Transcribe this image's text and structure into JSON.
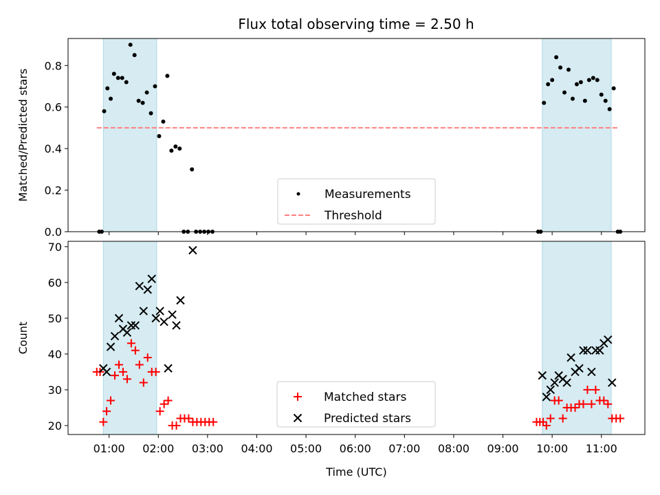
{
  "title": "Flux total observing time = 2.50 h",
  "colors": {
    "shade": "#add8e6",
    "threshold": "#ff7f7f",
    "measurements": "#000000",
    "matched": "#ff0000",
    "predicted": "#000000"
  },
  "chart_data": [
    {
      "type": "scatter",
      "ylabel": "Matched/Predicted stars",
      "ylim": [
        0,
        0.93
      ],
      "yticks": [
        0.0,
        0.2,
        0.4,
        0.6,
        0.8
      ],
      "ytick_labels": [
        "0.0",
        "0.2",
        "0.4",
        "0.6",
        "0.8"
      ],
      "shaded_intervals": [
        [
          "00:53",
          "01:58"
        ],
        [
          "09:48",
          "11:12"
        ]
      ],
      "threshold": 0.5,
      "threshold_range": [
        "00:45",
        "11:20"
      ],
      "legend": {
        "placement": "lower center",
        "entries": [
          "Measurements",
          "Threshold"
        ]
      },
      "series": [
        {
          "name": "Measurements",
          "marker": "dot",
          "points": [
            [
              "00:48",
              0.0
            ],
            [
              "00:51",
              0.0
            ],
            [
              "00:54",
              0.58
            ],
            [
              "00:58",
              0.69
            ],
            [
              "01:02",
              0.64
            ],
            [
              "01:06",
              0.76
            ],
            [
              "01:11",
              0.74
            ],
            [
              "01:16",
              0.74
            ],
            [
              "01:21",
              0.72
            ],
            [
              "01:26",
              0.9
            ],
            [
              "01:31",
              0.85
            ],
            [
              "01:36",
              0.63
            ],
            [
              "01:41",
              0.62
            ],
            [
              "01:46",
              0.67
            ],
            [
              "01:51",
              0.57
            ],
            [
              "01:56",
              0.7
            ],
            [
              "02:01",
              0.46
            ],
            [
              "02:06",
              0.53
            ],
            [
              "02:11",
              0.75
            ],
            [
              "02:16",
              0.39
            ],
            [
              "02:21",
              0.41
            ],
            [
              "02:26",
              0.4
            ],
            [
              "02:31",
              0.0
            ],
            [
              "02:36",
              0.0
            ],
            [
              "02:41",
              0.3
            ],
            [
              "02:46",
              0.0
            ],
            [
              "02:51",
              0.0
            ],
            [
              "02:56",
              0.0
            ],
            [
              "03:01",
              0.0
            ],
            [
              "03:06",
              0.0
            ],
            [
              "09:43",
              0.0
            ],
            [
              "09:46",
              0.0
            ],
            [
              "09:50",
              0.62
            ],
            [
              "09:55",
              0.71
            ],
            [
              "10:00",
              0.73
            ],
            [
              "10:05",
              0.84
            ],
            [
              "10:10",
              0.79
            ],
            [
              "10:15",
              0.67
            ],
            [
              "10:20",
              0.78
            ],
            [
              "10:25",
              0.64
            ],
            [
              "10:30",
              0.71
            ],
            [
              "10:35",
              0.72
            ],
            [
              "10:40",
              0.63
            ],
            [
              "10:45",
              0.73
            ],
            [
              "10:50",
              0.74
            ],
            [
              "10:55",
              0.73
            ],
            [
              "11:00",
              0.66
            ],
            [
              "11:05",
              0.63
            ],
            [
              "11:10",
              0.59
            ],
            [
              "11:15",
              0.69
            ],
            [
              "11:20",
              0.0
            ],
            [
              "11:23",
              0.0
            ]
          ]
        }
      ]
    },
    {
      "type": "scatter",
      "xlabel": "Time (UTC)",
      "ylabel": "Count",
      "ylim": [
        17.5,
        71.5
      ],
      "yticks": [
        20,
        30,
        40,
        50,
        60,
        70
      ],
      "ytick_labels": [
        "20",
        "30",
        "40",
        "50",
        "60",
        "70"
      ],
      "xlim": [
        "00:10",
        "11:53"
      ],
      "xticks": [
        "01:00",
        "02:00",
        "03:00",
        "04:00",
        "05:00",
        "06:00",
        "07:00",
        "08:00",
        "09:00",
        "10:00",
        "11:00"
      ],
      "xtick_labels": [
        "01:00",
        "02:00",
        "03:00",
        "04:00",
        "05:00",
        "06:00",
        "07:00",
        "08:00",
        "09:00",
        "10:00",
        "11:00"
      ],
      "shaded_intervals": [
        [
          "00:53",
          "01:58"
        ],
        [
          "09:48",
          "11:12"
        ]
      ],
      "legend": {
        "placement": "lower center",
        "entries": [
          "Matched stars",
          "Predicted stars"
        ]
      },
      "series": [
        {
          "name": "Matched stars",
          "marker": "plus",
          "points": [
            [
              "00:45",
              35
            ],
            [
              "00:49",
              35
            ],
            [
              "00:53",
              21
            ],
            [
              "00:57",
              24
            ],
            [
              "01:02",
              27
            ],
            [
              "01:07",
              34
            ],
            [
              "01:12",
              37
            ],
            [
              "01:17",
              35
            ],
            [
              "01:22",
              33
            ],
            [
              "01:27",
              43
            ],
            [
              "01:32",
              41
            ],
            [
              "01:37",
              37
            ],
            [
              "01:42",
              32
            ],
            [
              "01:47",
              39
            ],
            [
              "01:52",
              35
            ],
            [
              "01:57",
              35
            ],
            [
              "02:02",
              24
            ],
            [
              "02:07",
              26
            ],
            [
              "02:12",
              27
            ],
            [
              "02:17",
              20
            ],
            [
              "02:22",
              20
            ],
            [
              "02:27",
              22
            ],
            [
              "02:32",
              22
            ],
            [
              "02:37",
              22
            ],
            [
              "02:42",
              21
            ],
            [
              "02:47",
              21
            ],
            [
              "02:52",
              21
            ],
            [
              "02:57",
              21
            ],
            [
              "03:02",
              21
            ],
            [
              "03:07",
              21
            ],
            [
              "09:41",
              21
            ],
            [
              "09:45",
              21
            ],
            [
              "09:49",
              21
            ],
            [
              "09:53",
              20
            ],
            [
              "09:58",
              22
            ],
            [
              "10:03",
              27
            ],
            [
              "10:08",
              27
            ],
            [
              "10:13",
              22
            ],
            [
              "10:18",
              25
            ],
            [
              "10:23",
              25
            ],
            [
              "10:28",
              25
            ],
            [
              "10:33",
              26
            ],
            [
              "10:38",
              26
            ],
            [
              "10:43",
              30
            ],
            [
              "10:48",
              26
            ],
            [
              "10:53",
              30
            ],
            [
              "10:58",
              27
            ],
            [
              "11:03",
              27
            ],
            [
              "11:08",
              26
            ],
            [
              "11:13",
              22
            ],
            [
              "11:18",
              22
            ],
            [
              "11:23",
              22
            ]
          ]
        },
        {
          "name": "Predicted stars",
          "marker": "x",
          "points": [
            [
              "00:53",
              36
            ],
            [
              "00:57",
              35
            ],
            [
              "01:02",
              42
            ],
            [
              "01:07",
              45
            ],
            [
              "01:12",
              50
            ],
            [
              "01:17",
              47
            ],
            [
              "01:22",
              46
            ],
            [
              "01:27",
              48
            ],
            [
              "01:32",
              48
            ],
            [
              "01:37",
              59
            ],
            [
              "01:42",
              52
            ],
            [
              "01:47",
              58
            ],
            [
              "01:52",
              61
            ],
            [
              "01:57",
              50
            ],
            [
              "02:02",
              52
            ],
            [
              "02:07",
              49
            ],
            [
              "02:12",
              36
            ],
            [
              "02:17",
              51
            ],
            [
              "02:22",
              48
            ],
            [
              "02:27",
              55
            ],
            [
              "02:42",
              69
            ],
            [
              "09:48",
              34
            ],
            [
              "09:53",
              28
            ],
            [
              "09:58",
              30
            ],
            [
              "10:03",
              32
            ],
            [
              "10:08",
              34
            ],
            [
              "10:13",
              33
            ],
            [
              "10:18",
              32
            ],
            [
              "10:23",
              39
            ],
            [
              "10:28",
              35
            ],
            [
              "10:33",
              36
            ],
            [
              "10:38",
              41
            ],
            [
              "10:43",
              41
            ],
            [
              "10:48",
              35
            ],
            [
              "10:53",
              41
            ],
            [
              "10:58",
              41
            ],
            [
              "11:03",
              43
            ],
            [
              "11:08",
              44
            ],
            [
              "11:13",
              32
            ]
          ]
        }
      ]
    }
  ]
}
